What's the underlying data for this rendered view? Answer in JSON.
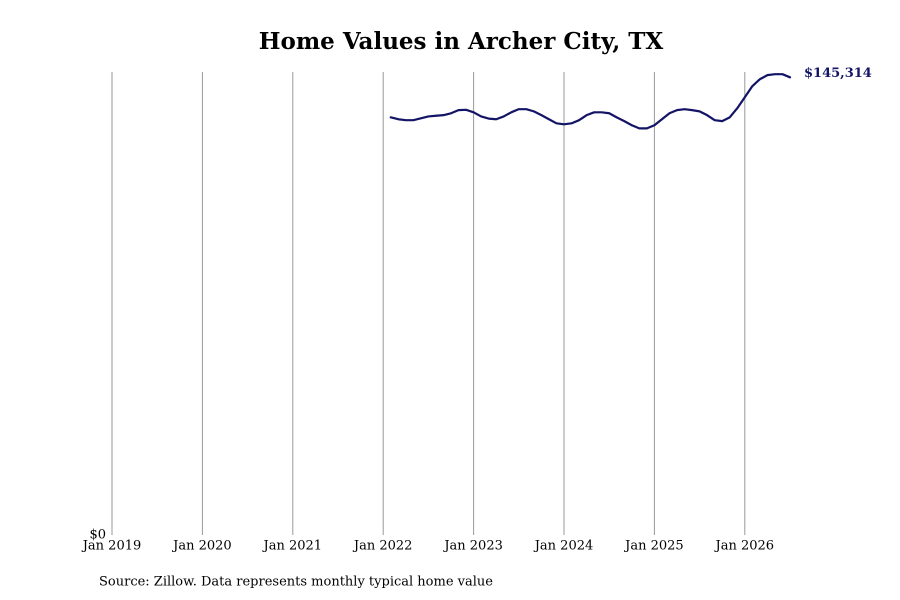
{
  "chart_data": {
    "type": "line",
    "title": "Home Values in Archer City, TX",
    "source": "Source: Zillow. Data represents monthly typical home value",
    "x": [
      "2022-02",
      "2022-03",
      "2022-04",
      "2022-05",
      "2022-06",
      "2022-07",
      "2022-08",
      "2022-09",
      "2022-10",
      "2022-11",
      "2022-12",
      "2023-01",
      "2023-02",
      "2023-03",
      "2023-04",
      "2023-05",
      "2023-06",
      "2023-07",
      "2023-08",
      "2023-09",
      "2023-10",
      "2023-11",
      "2023-12",
      "2024-01",
      "2024-02",
      "2024-03",
      "2024-04",
      "2024-05",
      "2024-06",
      "2024-07",
      "2024-08",
      "2024-09",
      "2024-10",
      "2024-11",
      "2024-12",
      "2025-01",
      "2025-02",
      "2025-03",
      "2025-04",
      "2025-05",
      "2025-06",
      "2025-07",
      "2025-08",
      "2025-09",
      "2025-10",
      "2025-11",
      "2025-12",
      "2026-01",
      "2026-02",
      "2026-03",
      "2026-04",
      "2026-05",
      "2026-06",
      "2026-07"
    ],
    "series": [
      {
        "name": "Typical home value",
        "color": "#141466",
        "values": [
          132600,
          132000,
          131700,
          131700,
          132300,
          132900,
          133100,
          133300,
          133900,
          134900,
          135000,
          134200,
          132900,
          132200,
          132000,
          132900,
          134200,
          135200,
          135200,
          134500,
          133300,
          132000,
          130700,
          130400,
          130700,
          131700,
          133300,
          134200,
          134200,
          133900,
          132600,
          131400,
          130100,
          129100,
          129100,
          130100,
          132000,
          133900,
          134900,
          135200,
          134900,
          134500,
          133300,
          131700,
          131400,
          132600,
          135500,
          139000,
          142500,
          144700,
          146000,
          146300,
          146300,
          145314
        ],
        "value_labels": [
          null,
          null,
          null,
          null,
          null,
          null,
          null,
          null,
          null,
          null,
          null,
          null,
          null,
          null,
          null,
          null,
          null,
          null,
          null,
          null,
          null,
          null,
          null,
          null,
          null,
          null,
          null,
          null,
          null,
          null,
          null,
          null,
          null,
          null,
          null,
          null,
          null,
          null,
          null,
          null,
          null,
          null,
          null,
          null,
          null,
          null,
          null,
          null,
          null,
          null,
          null,
          null,
          null,
          "$145,314"
        ]
      }
    ],
    "xlim": [
      "2019-01",
      "2026-07"
    ],
    "xticks": [
      {
        "value": "2019-01",
        "label": "Jan 2019"
      },
      {
        "value": "2020-01",
        "label": "Jan 2020"
      },
      {
        "value": "2021-01",
        "label": "Jan 2021"
      },
      {
        "value": "2022-01",
        "label": "Jan 2022"
      },
      {
        "value": "2023-01",
        "label": "Jan 2023"
      },
      {
        "value": "2024-01",
        "label": "Jan 2024"
      },
      {
        "value": "2025-01",
        "label": "Jan 2025"
      },
      {
        "value": "2026-01",
        "label": "Jan 2026"
      }
    ],
    "ylim": [
      0,
      147000
    ],
    "yticks": [
      {
        "value": 0,
        "label": "$0"
      }
    ],
    "grid": "x"
  }
}
